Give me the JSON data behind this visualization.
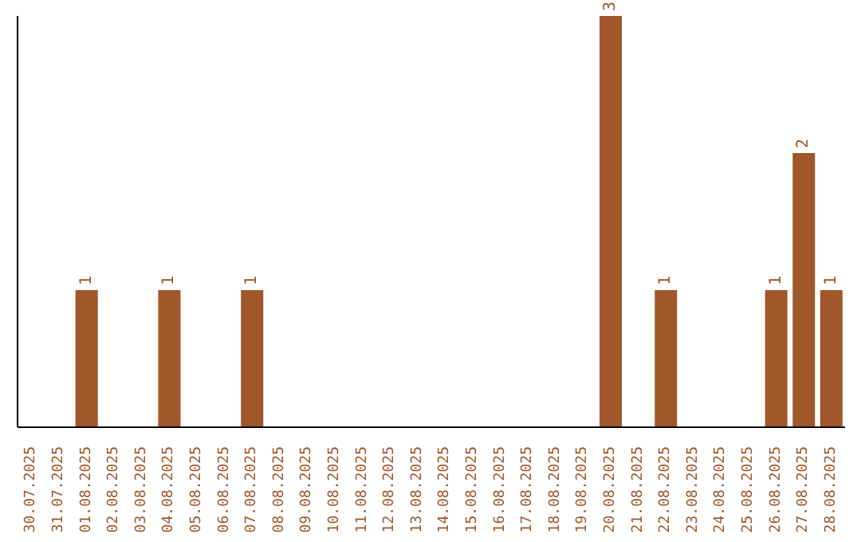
{
  "chart_data": {
    "type": "bar",
    "categories": [
      "30.07.2025",
      "31.07.2025",
      "01.08.2025",
      "02.08.2025",
      "03.08.2025",
      "04.08.2025",
      "05.08.2025",
      "06.08.2025",
      "07.08.2025",
      "08.08.2025",
      "09.08.2025",
      "10.08.2025",
      "11.08.2025",
      "12.08.2025",
      "13.08.2025",
      "14.08.2025",
      "15.08.2025",
      "16.08.2025",
      "17.08.2025",
      "18.08.2025",
      "19.08.2025",
      "20.08.2025",
      "21.08.2025",
      "22.08.2025",
      "23.08.2025",
      "24.08.2025",
      "25.08.2025",
      "26.08.2025",
      "27.08.2025",
      "28.08.2025"
    ],
    "values": [
      null,
      null,
      1,
      null,
      null,
      1,
      null,
      null,
      1,
      null,
      null,
      null,
      null,
      null,
      null,
      null,
      null,
      null,
      null,
      null,
      null,
      3,
      null,
      1,
      null,
      null,
      null,
      1,
      2,
      1
    ],
    "color": "#a0572a",
    "data_labels": true,
    "grid": false,
    "legend": false
  }
}
